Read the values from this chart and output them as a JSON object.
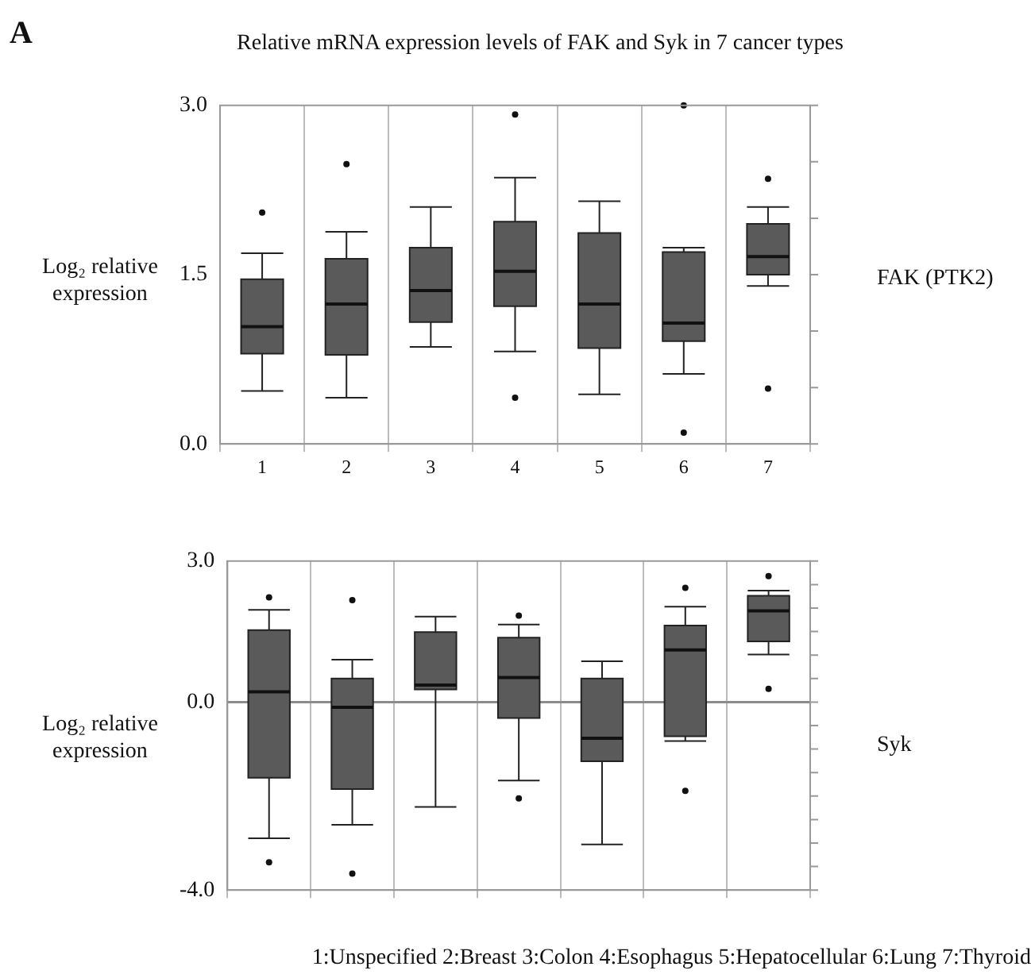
{
  "chart_data": [
    {
      "type": "box",
      "title": "Relative mRNA expression levels of FAK and Syk in 7 cancer types",
      "ylabel": "Log₂ relative expression",
      "y2label": "FAK (PTK2)",
      "annotations": [
        "A"
      ],
      "categories": [
        "1",
        "2",
        "3",
        "4",
        "5",
        "6",
        "7"
      ],
      "boxes": [
        {
          "low": 0.47,
          "q1": 0.8,
          "median": 1.04,
          "q3": 1.46,
          "high": 1.69,
          "outliers": [
            2.05
          ]
        },
        {
          "low": 0.41,
          "q1": 0.79,
          "median": 1.24,
          "q3": 1.64,
          "high": 1.88,
          "outliers": [
            2.48
          ]
        },
        {
          "low": 0.86,
          "q1": 1.08,
          "median": 1.36,
          "q3": 1.74,
          "high": 2.1
        },
        {
          "low": 0.82,
          "q1": 1.22,
          "median": 1.53,
          "q3": 1.97,
          "high": 2.36,
          "outliers": [
            2.92,
            0.41
          ]
        },
        {
          "low": 0.44,
          "q1": 0.85,
          "median": 1.24,
          "q3": 1.87,
          "high": 2.15
        },
        {
          "low": 0.62,
          "q1": 0.91,
          "median": 1.07,
          "q3": 1.7,
          "high": 1.74,
          "outliers": [
            3.0,
            0.1
          ]
        },
        {
          "low": 1.4,
          "q1": 1.5,
          "median": 1.66,
          "q3": 1.95,
          "high": 2.1,
          "outliers": [
            2.35,
            0.49
          ]
        }
      ],
      "color": "#5a5a5a",
      "ylim": [
        0,
        3
      ],
      "yticks": [
        {
          "value": 0,
          "label": "0.0"
        },
        {
          "value": 0.5,
          "label": null
        },
        {
          "value": 1,
          "label": null
        },
        {
          "value": 1.5,
          "label": "1.5"
        },
        {
          "value": 2,
          "label": null
        },
        {
          "value": 2.5,
          "label": null
        },
        {
          "value": 3,
          "label": "3.0"
        }
      ],
      "grid": "x",
      "legend": false
    },
    {
      "type": "box",
      "ylabel": "Log₂ relative expression",
      "y2label": "Syk",
      "xlabel": "1:Unspecified  2:Breast  3:Colon  4:Esophagus  5:Hepatocellular  6:Lung 7:Thyroid",
      "categories": [
        "1",
        "2",
        "3",
        "4",
        "5",
        "6",
        "7"
      ],
      "tick_labels": "y",
      "boxes": [
        {
          "low": -2.9,
          "q1": -1.61,
          "median": 0.22,
          "q3": 1.53,
          "high": 1.96,
          "outliers": [
            2.23,
            -3.41
          ]
        },
        {
          "low": -2.61,
          "q1": -1.85,
          "median": -0.11,
          "q3": 0.5,
          "high": 0.9,
          "outliers": [
            2.17,
            -3.65
          ]
        },
        {
          "low": -2.23,
          "q1": 0.27,
          "median": 0.36,
          "q3": 1.49,
          "high": 1.82
        },
        {
          "low": -1.67,
          "q1": -0.34,
          "median": 0.52,
          "q3": 1.37,
          "high": 1.65,
          "outliers": [
            1.84,
            -2.05
          ]
        },
        {
          "low": -3.03,
          "q1": -1.26,
          "median": -0.77,
          "q3": 0.5,
          "high": 0.87
        },
        {
          "low": -0.83,
          "q1": -0.73,
          "median": 1.11,
          "q3": 1.63,
          "high": 2.03,
          "outliers": [
            2.43,
            -1.89
          ]
        },
        {
          "low": 1.01,
          "q1": 1.29,
          "median": 1.94,
          "q3": 2.26,
          "high": 2.37,
          "outliers": [
            2.68,
            0.28
          ]
        }
      ],
      "color": "#5a5a5a",
      "ylim": [
        -4,
        3
      ],
      "yticks": [
        {
          "value": -4,
          "label": "-4.0"
        },
        {
          "value": -3.5,
          "label": null
        },
        {
          "value": -3,
          "label": null
        },
        {
          "value": -2.5,
          "label": null
        },
        {
          "value": -2,
          "label": null
        },
        {
          "value": -1.5,
          "label": null
        },
        {
          "value": -1,
          "label": null
        },
        {
          "value": -0.5,
          "label": null
        },
        {
          "value": 0,
          "label": "0.0"
        },
        {
          "value": 0.5,
          "label": null
        },
        {
          "value": 1,
          "label": null
        },
        {
          "value": 1.5,
          "label": null
        },
        {
          "value": 2,
          "label": null
        },
        {
          "value": 2.5,
          "label": null
        },
        {
          "value": 3,
          "label": "3.0"
        }
      ],
      "ref_lines": [
        {
          "axis": "y",
          "value": 0,
          "color": "#8c8c8c"
        }
      ],
      "grid": "x",
      "legend": false
    }
  ]
}
